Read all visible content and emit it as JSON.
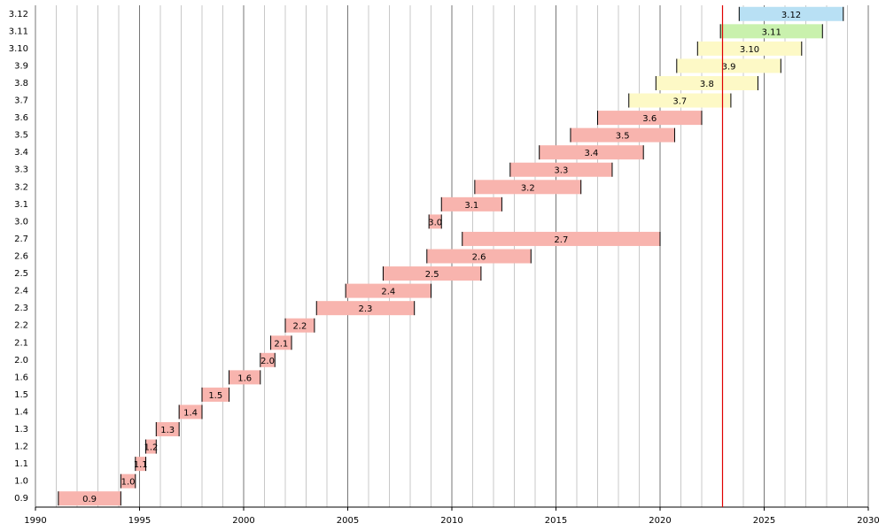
{
  "chart_data": {
    "type": "gantt",
    "categories": [
      "0.9",
      "1.0",
      "1.1",
      "1.2",
      "1.3",
      "1.4",
      "1.5",
      "1.6",
      "2.0",
      "2.1",
      "2.2",
      "2.3",
      "2.4",
      "2.5",
      "2.6",
      "2.7",
      "3.0",
      "3.1",
      "3.2",
      "3.3",
      "3.4",
      "3.5",
      "3.6",
      "3.7",
      "3.8",
      "3.9",
      "3.10",
      "3.11",
      "3.12"
    ],
    "start": [
      1991.1,
      1994.1,
      1994.8,
      1995.3,
      1995.8,
      1996.9,
      1998.0,
      1999.3,
      2000.8,
      2001.3,
      2002.0,
      2003.5,
      2004.9,
      2006.7,
      2008.8,
      2010.5,
      2008.9,
      2009.5,
      2011.1,
      2012.8,
      2014.2,
      2015.7,
      2017.0,
      2018.5,
      2019.8,
      2020.8,
      2021.8,
      2022.9,
      2023.8
    ],
    "end": [
      1994.1,
      1994.8,
      1995.3,
      1995.8,
      1996.9,
      1998.0,
      1999.3,
      2000.8,
      2001.5,
      2002.3,
      2003.4,
      2008.2,
      2009.0,
      2011.4,
      2013.8,
      2020.0,
      2009.5,
      2012.4,
      2016.2,
      2017.7,
      2019.2,
      2020.7,
      2022.0,
      2023.4,
      2024.7,
      2025.8,
      2026.8,
      2027.8,
      2028.8
    ],
    "colors": [
      "#f8b4ae",
      "#f8b4ae",
      "#f8b4ae",
      "#f8b4ae",
      "#f8b4ae",
      "#f8b4ae",
      "#f8b4ae",
      "#f8b4ae",
      "#f8b4ae",
      "#f8b4ae",
      "#f8b4ae",
      "#f8b4ae",
      "#f8b4ae",
      "#f8b4ae",
      "#f8b4ae",
      "#f8b4ae",
      "#f8b4ae",
      "#f8b4ae",
      "#f8b4ae",
      "#f8b4ae",
      "#f8b4ae",
      "#f8b4ae",
      "#f8b4ae",
      "#fdf9c6",
      "#fdf9c6",
      "#fdf9c6",
      "#fdf9c6",
      "#c9f1ad",
      "#b8e0f4"
    ],
    "xlim": [
      1990,
      2030
    ],
    "xticks": [
      1990,
      1995,
      2000,
      2005,
      2010,
      2015,
      2020,
      2025,
      2030
    ],
    "xminorticks": [
      1991,
      1992,
      1993,
      1994,
      1996,
      1997,
      1998,
      1999,
      2001,
      2002,
      2003,
      2004,
      2006,
      2007,
      2008,
      2009,
      2011,
      2012,
      2013,
      2014,
      2016,
      2017,
      2018,
      2019,
      2021,
      2022,
      2023,
      2024,
      2026,
      2027,
      2028,
      2029
    ],
    "marker": 2023,
    "marker_color": "#e00000",
    "grid": true
  }
}
